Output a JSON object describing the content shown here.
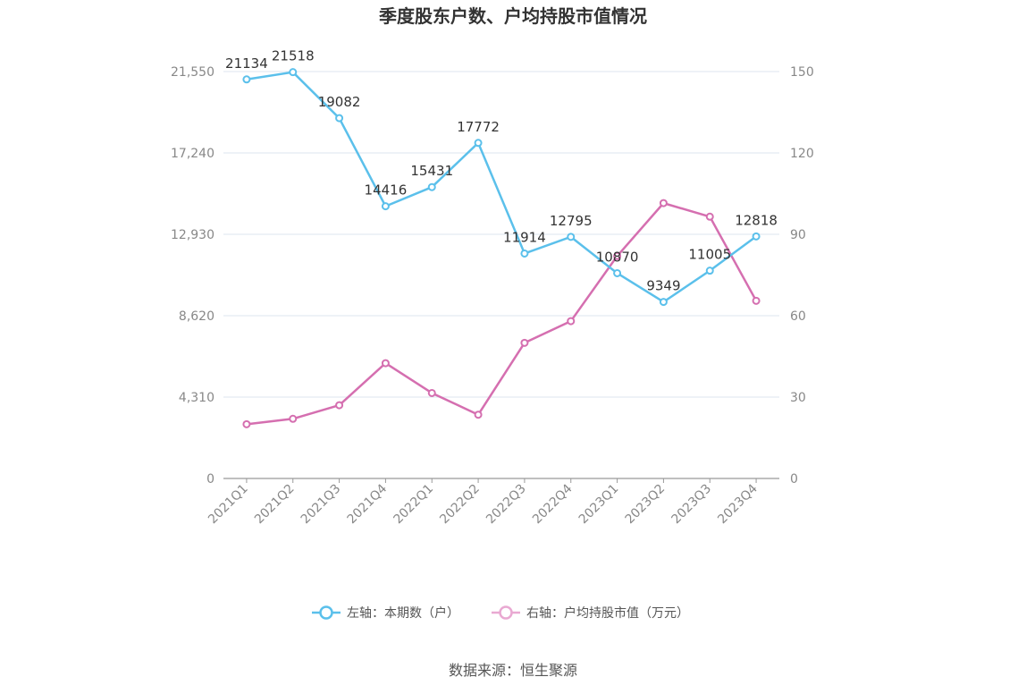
{
  "chart_data": {
    "type": "line",
    "title": "季度股东户数、户均持股市值情况",
    "categories": [
      "2021Q1",
      "2021Q2",
      "2021Q3",
      "2021Q4",
      "2022Q1",
      "2022Q2",
      "2022Q3",
      "2022Q4",
      "2023Q1",
      "2023Q2",
      "2023Q3",
      "2023Q4"
    ],
    "series": [
      {
        "name": "左轴：本期数（户）",
        "axis": "left",
        "color": "#5bc0eb",
        "values": [
          21134,
          21518,
          19082,
          14416,
          15431,
          17772,
          11914,
          12795,
          10870,
          9349,
          11005,
          12818
        ],
        "labels": [
          "21134",
          "21518",
          "19082",
          "14416",
          "15431",
          "17772",
          "11914",
          "12795",
          "10870",
          "9349",
          "11005",
          "12818"
        ]
      },
      {
        "name": "右轴：户均持股市值（万元）",
        "axis": "right",
        "color": "#d56fb0",
        "values": [
          20.0,
          22.0,
          27.0,
          42.5,
          31.5,
          23.5,
          50.0,
          58.0,
          82.0,
          101.5,
          96.5,
          65.5
        ]
      }
    ],
    "left_axis": {
      "min": 0,
      "max": 21550,
      "ticks": [
        0,
        4310,
        8620,
        12930,
        17240,
        21550
      ],
      "tick_labels": [
        "0",
        "4,310",
        "8,620",
        "12,930",
        "17,240",
        "21,550"
      ]
    },
    "right_axis": {
      "min": 0,
      "max": 150,
      "ticks": [
        0,
        30,
        60,
        90,
        120,
        150
      ],
      "tick_labels": [
        "0",
        "30",
        "60",
        "90",
        "120",
        "150"
      ]
    },
    "grid": true,
    "legend_position": "bottom",
    "source": "数据来源：恒生聚源"
  }
}
